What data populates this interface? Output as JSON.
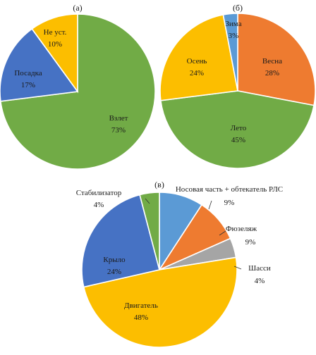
{
  "chart_data": [
    {
      "type": "pie",
      "panel_label": "(а)",
      "start": "top",
      "direction": "clockwise",
      "slices": [
        {
          "label": "Взлет",
          "value": 73,
          "value_text": "73%",
          "color": "#71ab46"
        },
        {
          "label": "Посадка",
          "value": 17,
          "value_text": "17%",
          "color": "#4672c4"
        },
        {
          "label": "Не уст.",
          "value": 10,
          "value_text": "10%",
          "color": "#fcbe00"
        }
      ]
    },
    {
      "type": "pie",
      "panel_label": "(б)",
      "start": "top",
      "direction": "clockwise",
      "slices": [
        {
          "label": "Весна",
          "value": 28,
          "value_text": "28%",
          "color": "#ee7b30"
        },
        {
          "label": "Лето",
          "value": 45,
          "value_text": "45%",
          "color": "#71ab46"
        },
        {
          "label": "Осень",
          "value": 24,
          "value_text": "24%",
          "color": "#fcbe00"
        },
        {
          "label": "Зима",
          "value": 3,
          "value_text": "3%",
          "color": "#5b9ad5"
        }
      ]
    },
    {
      "type": "pie",
      "panel_label": "(в)",
      "start": "top",
      "direction": "clockwise",
      "slices": [
        {
          "label": "Носовая часть + обтекатель РЛС",
          "value": 9,
          "value_text": "9%",
          "color": "#5b9ad5"
        },
        {
          "label": "Фюзеляж",
          "value": 9,
          "value_text": "9%",
          "color": "#ee7b30"
        },
        {
          "label": "Шасси",
          "value": 4,
          "value_text": "4%",
          "color": "#a5a5a5"
        },
        {
          "label": "Двигатель",
          "value": 48,
          "value_text": "48%",
          "color": "#fcbe00"
        },
        {
          "label": "Крыло",
          "value": 24,
          "value_text": "24%",
          "color": "#4672c4"
        },
        {
          "label": "Стабилизатор",
          "value": 4,
          "value_text": "4%",
          "color": "#71ab46"
        }
      ]
    }
  ]
}
